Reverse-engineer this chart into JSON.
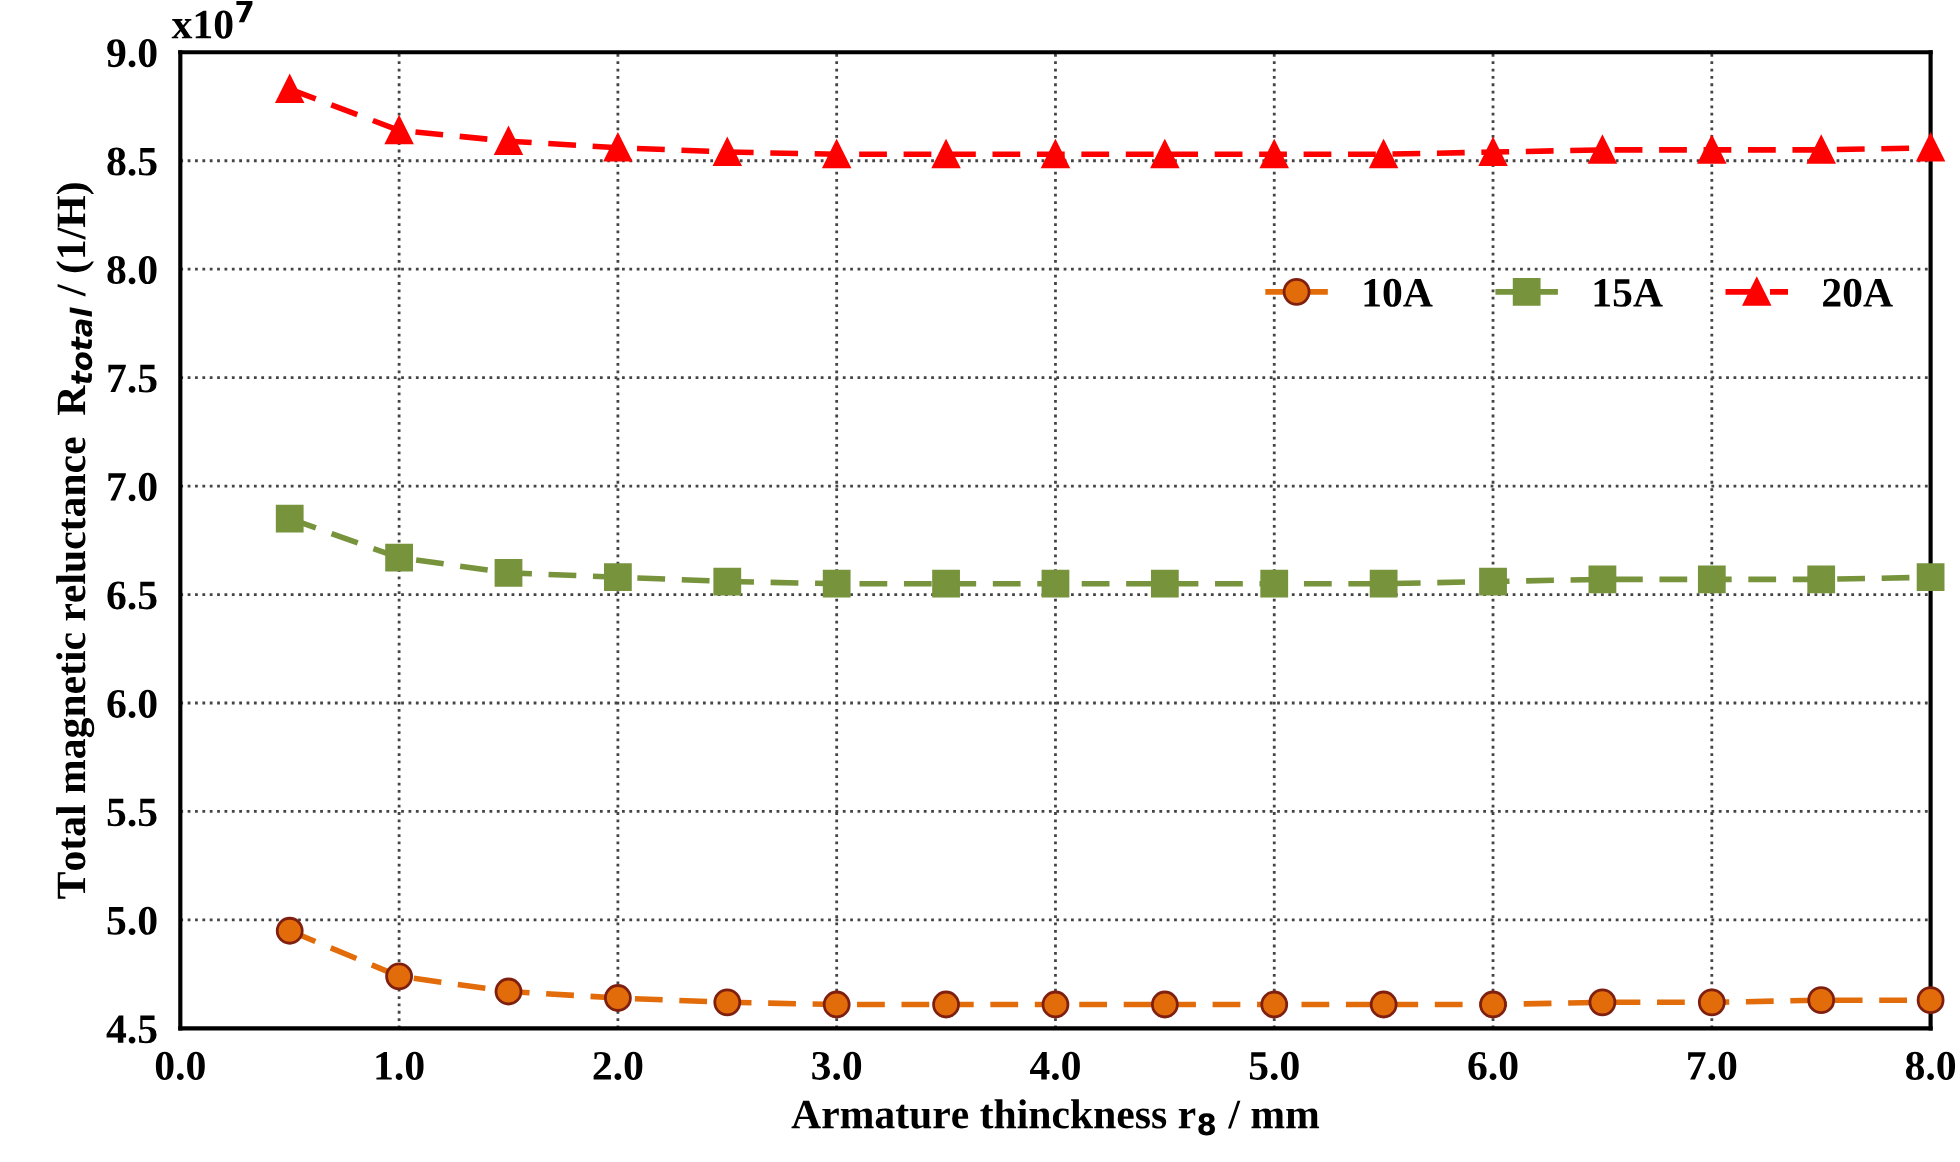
{
  "chart_data": {
    "type": "line",
    "xlabel": "Armature thinckness r$_{8}$ / mm",
    "ylabel": "Total magnetic reluctance  R$_{total}$ / (1/H)",
    "annotations": [
      "x10$^{7}$"
    ],
    "x": [
      0.5,
      1.0,
      1.5,
      2.0,
      2.5,
      3.0,
      3.5,
      4.0,
      4.5,
      5.0,
      5.5,
      6.0,
      6.5,
      7.0,
      7.5,
      8.0
    ],
    "series": [
      {
        "name": "10A",
        "color": "#e36c0a",
        "marker": "circle",
        "values": [
          4.95,
          4.74,
          4.67,
          4.64,
          4.62,
          4.61,
          4.61,
          4.61,
          4.61,
          4.61,
          4.61,
          4.61,
          4.62,
          4.62,
          4.63,
          4.63
        ]
      },
      {
        "name": "15A",
        "color": "#77933c",
        "marker": "square",
        "values": [
          6.85,
          6.67,
          6.6,
          6.58,
          6.56,
          6.55,
          6.55,
          6.55,
          6.55,
          6.55,
          6.55,
          6.56,
          6.57,
          6.57,
          6.57,
          6.58
        ]
      },
      {
        "name": "20A",
        "color": "#ff0000",
        "marker": "triangle",
        "values": [
          8.83,
          8.64,
          8.59,
          8.56,
          8.54,
          8.53,
          8.53,
          8.53,
          8.53,
          8.53,
          8.53,
          8.54,
          8.55,
          8.55,
          8.55,
          8.56
        ]
      }
    ],
    "xlim": [
      0.0,
      8.0
    ],
    "xticks": [
      {
        "value": 0,
        "label": "0.0"
      },
      {
        "value": 1,
        "label": "1.0"
      },
      {
        "value": 2,
        "label": "2.0"
      },
      {
        "value": 3,
        "label": "3.0"
      },
      {
        "value": 4,
        "label": "4.0"
      },
      {
        "value": 5,
        "label": "5.0"
      },
      {
        "value": 6,
        "label": "6.0"
      },
      {
        "value": 7,
        "label": "7.0"
      },
      {
        "value": 8,
        "label": "8.0"
      }
    ],
    "ylim": [
      4.5,
      9.0
    ],
    "yticks": [
      4.5,
      {
        "value": 5,
        "label": "5.0"
      },
      5.5,
      {
        "value": 6,
        "label": "6.0"
      },
      6.5,
      {
        "value": 7,
        "label": "7.0"
      },
      7.5,
      {
        "value": 8,
        "label": "8.0"
      },
      8.5,
      {
        "value": 9,
        "label": "9.0"
      }
    ],
    "grid": true,
    "legend": "right",
    "line_style": "dashed"
  }
}
